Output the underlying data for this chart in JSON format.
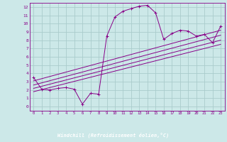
{
  "xlabel": "Windchill (Refroidissement éolien,°C)",
  "bg_color": "#cce8e8",
  "grid_color": "#aacccc",
  "line_color": "#880088",
  "axis_bottom_color": "#6600aa",
  "x_ticks": [
    0,
    1,
    2,
    3,
    4,
    5,
    6,
    7,
    8,
    9,
    10,
    11,
    12,
    13,
    14,
    15,
    16,
    17,
    18,
    19,
    20,
    21,
    22,
    23
  ],
  "y_ticks": [
    0,
    1,
    2,
    3,
    4,
    5,
    6,
    7,
    8,
    9,
    10,
    11,
    12
  ],
  "xlim": [
    -0.5,
    23.5
  ],
  "ylim": [
    -0.5,
    12.5
  ],
  "wavy_x": [
    0,
    1,
    2,
    3,
    4,
    5,
    6,
    7,
    8,
    9,
    10,
    11,
    12,
    13,
    14,
    15,
    16,
    17,
    18,
    19,
    20,
    21,
    22,
    23
  ],
  "wavy_y": [
    3.5,
    2.1,
    2.0,
    2.2,
    2.3,
    2.1,
    0.3,
    1.6,
    1.5,
    8.5,
    10.8,
    11.5,
    11.8,
    12.1,
    12.2,
    11.3,
    8.1,
    8.8,
    9.2,
    9.1,
    8.5,
    8.7,
    7.7,
    9.7
  ],
  "ref_lines": [
    {
      "x": [
        0,
        23
      ],
      "y": [
        1.8,
        7.5
      ]
    },
    {
      "x": [
        0,
        23
      ],
      "y": [
        2.2,
        8.0
      ]
    },
    {
      "x": [
        0,
        23
      ],
      "y": [
        2.6,
        8.6
      ]
    },
    {
      "x": [
        0,
        23
      ],
      "y": [
        3.1,
        9.2
      ]
    }
  ]
}
